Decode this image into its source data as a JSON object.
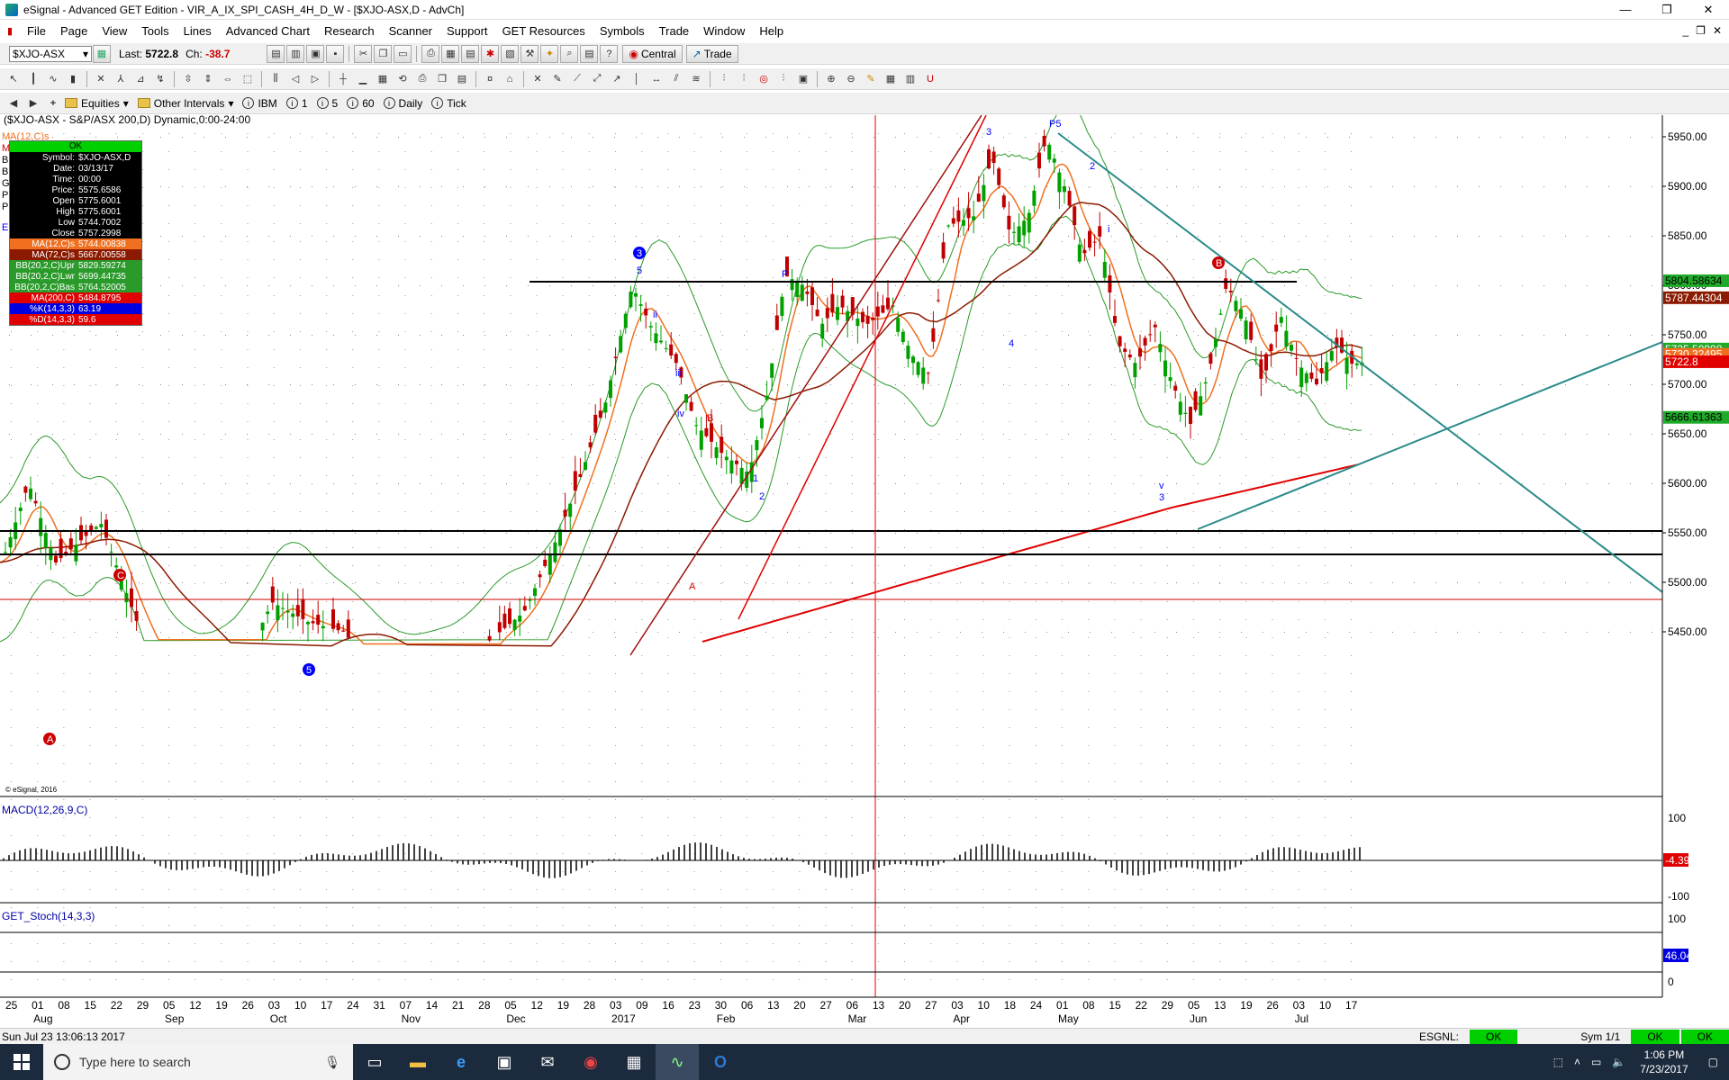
{
  "window": {
    "title": "eSignal - Advanced GET Edition - VIR_A_IX_SPI_CASH_4H_D_W - [$XJO-ASX,D - AdvCh]",
    "minimize": "—",
    "restore": "❐",
    "close": "✕"
  },
  "menu": [
    "File",
    "Page",
    "View",
    "Tools",
    "Lines",
    "Advanced Chart",
    "Research",
    "Scanner",
    "Support",
    "GET Resources",
    "Symbols",
    "Trade",
    "Window",
    "Help"
  ],
  "menu_mdi": [
    "_",
    "❐",
    "✕"
  ],
  "toolbar1": {
    "symbol": "$XJO-ASX",
    "last_label": "Last:",
    "last_value": "5722.8",
    "ch_label": "Ch:",
    "ch_value": "-38.7",
    "central": "Central",
    "trade": "Trade"
  },
  "toolbar3": {
    "equities": "Equities",
    "other_intervals": "Other Intervals",
    "intervals": [
      "IBM",
      "1",
      "5",
      "60",
      "Daily",
      "Tick"
    ]
  },
  "chart": {
    "header": "($XJO-ASX - S&P/ASX 200,D) Dynamic,0:00-24:00",
    "copyright": "© eSignal, 2016",
    "left_legend": [
      "MA(12,C)s",
      "M",
      "B",
      "B",
      "G",
      "P",
      "P",
      "E"
    ],
    "data_window": {
      "ok": "OK",
      "rows": [
        {
          "l": "Symbol:",
          "v": "$XJO-ASX,D",
          "c": "#000"
        },
        {
          "l": "Date:",
          "v": "03/13/17",
          "c": "#000"
        },
        {
          "l": "Time:",
          "v": "00:00",
          "c": "#000"
        },
        {
          "l": "Price:",
          "v": "5575.6586",
          "c": "#000"
        },
        {
          "l": "Open",
          "v": "5775.6001",
          "c": "#000"
        },
        {
          "l": "High",
          "v": "5775.6001",
          "c": "#000"
        },
        {
          "l": "Low",
          "v": "5744.7002",
          "c": "#000"
        },
        {
          "l": "Close",
          "v": "5757.2998",
          "c": "#000"
        },
        {
          "l": "MA(12,C)s",
          "v": "5744.00838",
          "c": "#f07020"
        },
        {
          "l": "MA(72,C)s",
          "v": "5667.00558",
          "c": "#8b1a00"
        },
        {
          "l": "BB(20,2,C)Upr",
          "v": "5829.59274",
          "c": "#2a9a2a"
        },
        {
          "l": "BB(20,2,C)Lwr",
          "v": "5699.44735",
          "c": "#2a9a2a"
        },
        {
          "l": "BB(20,2,C)Bas",
          "v": "5764.52005",
          "c": "#2a9a2a"
        },
        {
          "l": "MA(200,C)",
          "v": "5484.8795",
          "c": "#e00000"
        },
        {
          "l": "%K(14,3,3)",
          "v": "63.19",
          "c": "#0000e0"
        },
        {
          "l": "%D(14,3,3)",
          "v": "59.6",
          "c": "#e00000"
        }
      ]
    },
    "price_axis": [
      "5950.00",
      "5900.00",
      "5850.00",
      "5800.00",
      "5750.00",
      "5700.00",
      "5650.00",
      "5600.00",
      "5550.00",
      "5500.00",
      "5450.00"
    ],
    "price_tags": [
      {
        "v": "5804.58634",
        "bg": "#1faa2a",
        "fg": "#000"
      },
      {
        "v": "5787.44304",
        "bg": "#8b1a00",
        "fg": "#fff"
      },
      {
        "v": "5735.59998",
        "bg": "#1faa2a",
        "fg": "#fff"
      },
      {
        "v": "5730.32495",
        "bg": "#f07020",
        "fg": "#fff"
      },
      {
        "v": "5722.8",
        "bg": "#e00000",
        "fg": "#fff"
      },
      {
        "v": "5666.61363",
        "bg": "#1faa2a",
        "fg": "#000"
      }
    ],
    "macd_label": "MACD(12,26,9,C)",
    "macd_axis": [
      "100",
      "-100"
    ],
    "macd_tag": "-4.39",
    "stoch_label": "GET_Stoch(14,3,3)",
    "stoch_axis": [
      "100",
      "0"
    ],
    "stoch_tag": "46.04",
    "date_ticks": [
      "25",
      "01",
      "08",
      "15",
      "22",
      "29",
      "05",
      "12",
      "19",
      "26",
      "03",
      "10",
      "17",
      "24",
      "31",
      "07",
      "14",
      "21",
      "28",
      "05",
      "12",
      "19",
      "28",
      "03",
      "09",
      "16",
      "23",
      "30",
      "06",
      "13",
      "20",
      "27",
      "06",
      "13",
      "20",
      "27",
      "03",
      "10",
      "18",
      "24",
      "01",
      "08",
      "15",
      "22",
      "29",
      "05",
      "13",
      "19",
      "26",
      "03",
      "10",
      "17"
    ],
    "month_labels": [
      "Aug",
      "Sep",
      "Oct",
      "Nov",
      "Dec",
      "2017",
      "Feb",
      "Mar",
      "Apr",
      "May",
      "Jun",
      "Jul"
    ],
    "wave_labels": [
      "3",
      "5",
      "P",
      "P5",
      "3",
      "2",
      "i",
      "ii",
      "iii",
      "iv",
      "v",
      "B",
      "A",
      "1",
      "2",
      "3",
      "4",
      "5",
      "C",
      "A",
      "B"
    ]
  },
  "status": {
    "left": "Sun Jul 23 13:06:13 2017",
    "esgnl": "ESGNL:",
    "ok1": "OK",
    "sym": "Sym 1/1",
    "ok2": "OK",
    "ok3": "OK"
  },
  "taskbar": {
    "search_placeholder": "Type here to search",
    "time": "1:06 PM",
    "date": "7/23/2017"
  }
}
